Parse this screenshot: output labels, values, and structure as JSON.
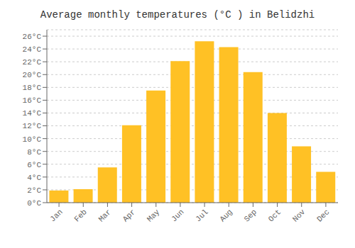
{
  "chart_data": {
    "type": "bar",
    "title": "Average monthly temperatures (°C ) in Belidzhi",
    "categories": [
      "Jan",
      "Feb",
      "Mar",
      "Apr",
      "May",
      "Jun",
      "Jul",
      "Aug",
      "Sep",
      "Oct",
      "Nov",
      "Dec"
    ],
    "values": [
      1.9,
      2.1,
      5.5,
      12.1,
      17.5,
      22.1,
      25.2,
      24.3,
      20.4,
      14.0,
      8.8,
      4.8
    ],
    "color": "#FFC125",
    "ylim": [
      0,
      27
    ],
    "yticks": [
      {
        "value": 0,
        "label": "0°C"
      },
      {
        "value": 2,
        "label": "2°C"
      },
      {
        "value": 4,
        "label": "4°C"
      },
      {
        "value": 6,
        "label": "6°C"
      },
      {
        "value": 8,
        "label": "8°C"
      },
      {
        "value": 10,
        "label": "10°C"
      },
      {
        "value": 12,
        "label": "12°C"
      },
      {
        "value": 14,
        "label": "14°C"
      },
      {
        "value": 16,
        "label": "16°C"
      },
      {
        "value": 18,
        "label": "18°C"
      },
      {
        "value": 20,
        "label": "20°C"
      },
      {
        "value": 22,
        "label": "22°C"
      },
      {
        "value": 24,
        "label": "24°C"
      },
      {
        "value": 26,
        "label": "26°C"
      }
    ],
    "grid": true
  }
}
